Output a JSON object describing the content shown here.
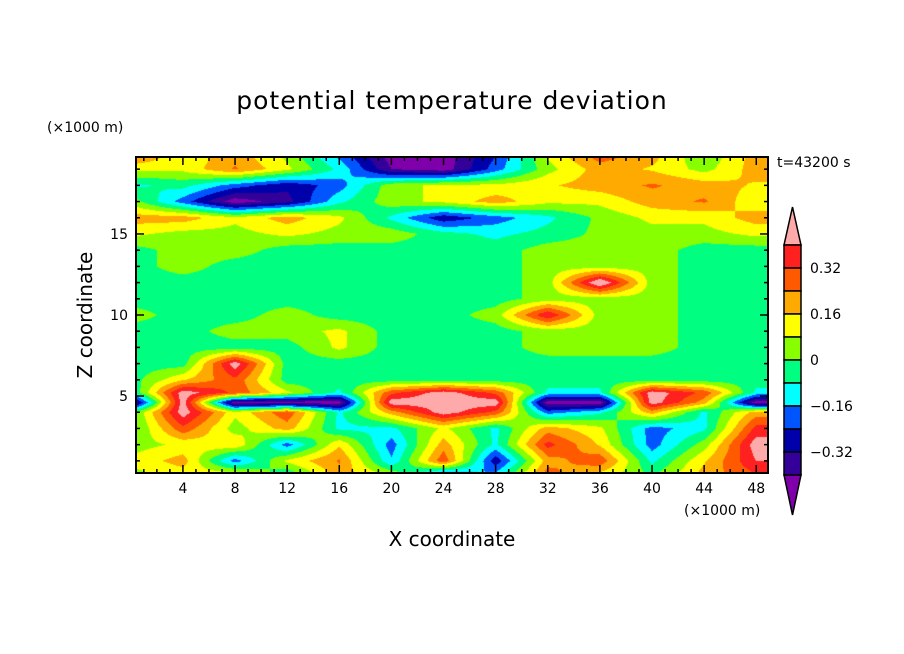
{
  "chart_data": {
    "type": "heatmap",
    "title": "potential temperature deviation",
    "xlabel": "X coordinate",
    "ylabel": "Z coordinate",
    "x_unit": "(×1000 m)",
    "y_unit": "(×1000 m)",
    "time_label": "t=43200 s",
    "xlim": [
      0.4,
      48.9
    ],
    "ylim": [
      0.25,
      19.75
    ],
    "x_ticks": [
      4,
      8,
      12,
      16,
      20,
      24,
      28,
      32,
      36,
      40,
      44,
      48
    ],
    "y_ticks": [
      5,
      10,
      15
    ],
    "colorbar": {
      "levels": [
        -0.4,
        -0.32,
        -0.24,
        -0.16,
        -0.08,
        0,
        0.08,
        0.16,
        0.24,
        0.32,
        0.4
      ],
      "labels": [
        "0.32",
        "0.16",
        "0",
        "−0.16",
        "−0.32"
      ],
      "label_values": [
        0.32,
        0.16,
        0,
        -0.16,
        -0.32
      ],
      "colors": [
        "#7f00aa",
        "#330099",
        "#0000aa",
        "#0055ff",
        "#00ffff",
        "#00ff80",
        "#88ff00",
        "#ffff00",
        "#ffaa00",
        "#ff5a00",
        "#ff2020",
        "#ffaaaa"
      ]
    },
    "x": [
      0,
      4,
      8,
      12,
      16,
      20,
      24,
      28,
      32,
      36,
      40,
      44,
      48
    ],
    "y": [
      20,
      19,
      18,
      17,
      16,
      15,
      14,
      13,
      12,
      11,
      10,
      9,
      8,
      7,
      6,
      5.2,
      4.6,
      4,
      3,
      2,
      1,
      0
    ],
    "z": [
      [
        0.3,
        0.1,
        0.2,
        0.05,
        -0.2,
        -0.45,
        -0.45,
        -0.25,
        0.1,
        0.3,
        0.2,
        0.0,
        0.2
      ],
      [
        0.1,
        0.1,
        0.25,
        0.1,
        -0.1,
        -0.4,
        -0.45,
        -0.2,
        0.05,
        0.2,
        0.15,
        0.05,
        0.2
      ],
      [
        -0.1,
        -0.05,
        -0.2,
        -0.3,
        -0.2,
        0.05,
        0.1,
        0.1,
        0.15,
        0.2,
        0.25,
        0.2,
        0.15
      ],
      [
        0.05,
        -0.2,
        -0.45,
        -0.35,
        -0.1,
        0.05,
        0.1,
        0.2,
        0.1,
        0.1,
        0.2,
        0.25,
        0.1
      ],
      [
        0.2,
        0.2,
        0.1,
        0.2,
        0.1,
        -0.1,
        -0.3,
        -0.2,
        -0.1,
        0.02,
        0.1,
        0.1,
        0.2
      ],
      [
        0.1,
        0.05,
        0.05,
        0.1,
        0.05,
        0.05,
        -0.05,
        -0.1,
        -0.05,
        0.02,
        0.05,
        0.05,
        0.1
      ],
      [
        -0.04,
        0.04,
        0.04,
        -0.04,
        -0.04,
        -0.04,
        -0.04,
        -0.04,
        0.04,
        0.04,
        0.04,
        -0.04,
        -0.04
      ],
      [
        -0.04,
        0.04,
        -0.04,
        -0.04,
        -0.04,
        -0.04,
        -0.04,
        -0.04,
        0.04,
        0.04,
        0.04,
        -0.04,
        -0.04
      ],
      [
        -0.04,
        -0.04,
        -0.04,
        -0.04,
        -0.04,
        -0.04,
        -0.04,
        -0.04,
        0.04,
        0.5,
        0.04,
        -0.04,
        -0.04
      ],
      [
        -0.04,
        -0.04,
        -0.04,
        -0.04,
        -0.04,
        -0.04,
        -0.04,
        -0.04,
        0.04,
        0.04,
        0.04,
        -0.04,
        -0.04
      ],
      [
        0.04,
        -0.04,
        -0.04,
        0.04,
        -0.04,
        -0.04,
        -0.04,
        0.04,
        0.4,
        0.04,
        0.04,
        -0.04,
        -0.04
      ],
      [
        -0.04,
        -0.04,
        0.04,
        0.04,
        0.1,
        -0.04,
        -0.04,
        -0.04,
        0.04,
        0.04,
        0.04,
        -0.04,
        -0.04
      ],
      [
        -0.04,
        -0.04,
        -0.04,
        -0.04,
        0.1,
        -0.04,
        -0.04,
        -0.04,
        0.04,
        0.04,
        0.04,
        -0.04,
        -0.04
      ],
      [
        -0.04,
        -0.04,
        0.45,
        -0.04,
        -0.04,
        -0.04,
        -0.04,
        -0.04,
        -0.04,
        -0.04,
        -0.04,
        -0.04,
        -0.04
      ],
      [
        -0.04,
        0.15,
        0.3,
        -0.04,
        -0.04,
        -0.04,
        -0.04,
        -0.04,
        -0.04,
        -0.04,
        -0.04,
        -0.04,
        -0.04
      ],
      [
        -0.1,
        0.45,
        0.3,
        0.1,
        -0.1,
        0.3,
        0.45,
        0.3,
        -0.1,
        -0.1,
        0.45,
        0.3,
        -0.1
      ],
      [
        -0.45,
        0.45,
        -0.45,
        -0.45,
        -0.45,
        0.45,
        0.45,
        0.45,
        -0.45,
        -0.45,
        0.45,
        0.2,
        -0.45
      ],
      [
        -0.04,
        0.45,
        0.1,
        0.3,
        -0.1,
        0.2,
        0.45,
        0.3,
        -0.2,
        -0.1,
        0.2,
        -0.1,
        0.2
      ],
      [
        -0.04,
        0.3,
        0.04,
        0.2,
        -0.1,
        -0.1,
        0.1,
        -0.1,
        0.2,
        0.1,
        -0.2,
        -0.1,
        0.35
      ],
      [
        0.04,
        0.1,
        0.15,
        -0.2,
        0.15,
        -0.2,
        0.2,
        -0.1,
        0.35,
        0.15,
        -0.2,
        0.04,
        0.45
      ],
      [
        0.1,
        0.2,
        -0.2,
        0.1,
        0.25,
        -0.15,
        0.3,
        -0.3,
        0.2,
        0.3,
        -0.1,
        0.15,
        0.4
      ],
      [
        0.04,
        0.1,
        0.2,
        -0.1,
        0.2,
        0.1,
        -0.35,
        -0.1,
        0.3,
        0.1,
        0.0,
        0.2,
        0.3
      ]
    ]
  }
}
